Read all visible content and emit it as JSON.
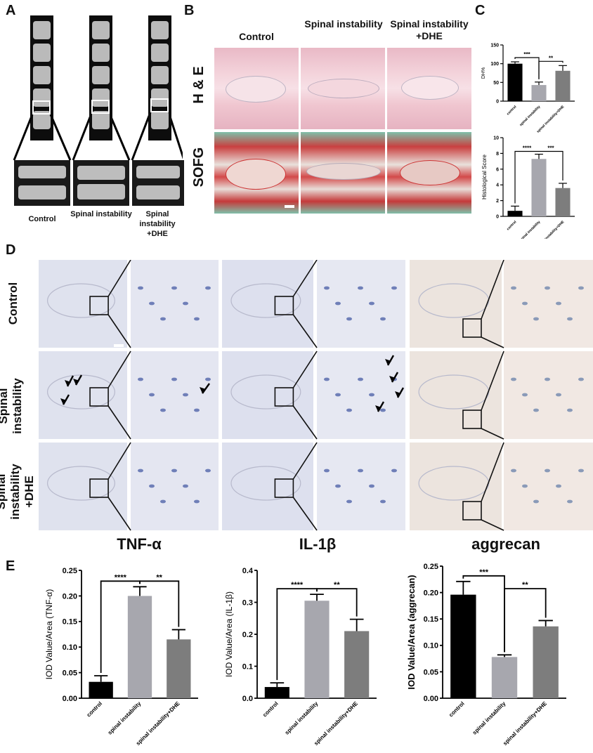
{
  "panels": {
    "A": "A",
    "B": "B",
    "C": "C",
    "D": "D",
    "E": "E"
  },
  "panel_a": {
    "labels": [
      "Control",
      "Spinal instability",
      "Spinal instability +DHE"
    ]
  },
  "panel_b": {
    "col_headers": [
      "Control",
      "Spinal instability",
      "Spinal instability +DHE"
    ],
    "row_labels": [
      "H & E",
      "SOFG"
    ]
  },
  "panel_d": {
    "row_labels": [
      "Control",
      "Spinal instability",
      "Spinal instability +DHE"
    ],
    "stain_labels": [
      "TNF-α",
      "IL-1β",
      "aggrecan"
    ]
  },
  "colors": {
    "control": "#000000",
    "instability": "#a7a7ae",
    "dhe": "#7d7d7d"
  },
  "chart_data": [
    {
      "type": "bar",
      "panel": "C-top",
      "categories": [
        "control",
        "spinal instability",
        "spinal instability+DHE"
      ],
      "values": [
        100,
        43,
        81
      ],
      "errors": [
        5,
        8,
        14
      ],
      "ylabel": "DH%",
      "ylim": [
        0,
        150
      ],
      "yticks": [
        0,
        50,
        100,
        150
      ],
      "annotations": [
        {
          "from": 0,
          "to": 1,
          "text": "***"
        },
        {
          "from": 1,
          "to": 2,
          "text": "**"
        }
      ]
    },
    {
      "type": "bar",
      "panel": "C-bottom",
      "categories": [
        "control",
        "spinal instability",
        "spinal instability+DHE"
      ],
      "values": [
        0.7,
        7.3,
        3.6
      ],
      "errors": [
        0.6,
        0.6,
        0.6
      ],
      "ylabel": "Histological Score",
      "ylim": [
        0,
        10
      ],
      "yticks": [
        0,
        2,
        4,
        6,
        8,
        10
      ],
      "annotations": [
        {
          "from": 0,
          "to": 1,
          "text": "****"
        },
        {
          "from": 1,
          "to": 2,
          "text": "***"
        }
      ]
    },
    {
      "type": "bar",
      "panel": "E-1",
      "categories": [
        "control",
        "spinal instability",
        "spinal instability+DHE"
      ],
      "values": [
        0.032,
        0.2,
        0.115
      ],
      "errors": [
        0.012,
        0.018,
        0.019
      ],
      "ylabel": "IOD Value/Area (TNF-α)",
      "ylim": [
        0,
        0.25
      ],
      "yticks": [
        "0.00",
        "0.05",
        "0.10",
        "0.15",
        "0.20",
        "0.25"
      ],
      "annotations": [
        {
          "from": 0,
          "to": 1,
          "text": "****"
        },
        {
          "from": 1,
          "to": 2,
          "text": "**"
        }
      ]
    },
    {
      "type": "bar",
      "panel": "E-2",
      "categories": [
        "control",
        "spinal instability",
        "spinal instability+DHE"
      ],
      "values": [
        0.035,
        0.305,
        0.21
      ],
      "errors": [
        0.013,
        0.02,
        0.037
      ],
      "ylabel": "IOD Value/Area (IL-1β)",
      "ylim": [
        0,
        0.4
      ],
      "yticks": [
        "0.0",
        "0.1",
        "0.2",
        "0.3",
        "0.4"
      ],
      "annotations": [
        {
          "from": 0,
          "to": 1,
          "text": "****"
        },
        {
          "from": 1,
          "to": 2,
          "text": "**"
        }
      ]
    },
    {
      "type": "bar",
      "panel": "E-3",
      "categories": [
        "control",
        "spinal instability",
        "spinal instability+DHE"
      ],
      "values": [
        0.196,
        0.078,
        0.136
      ],
      "errors": [
        0.025,
        0.004,
        0.011
      ],
      "ylabel": "IOD Value/Area (aggrecan)",
      "ylim": [
        0,
        0.25
      ],
      "yticks": [
        "0.00",
        "0.05",
        "0.10",
        "0.15",
        "0.20",
        "0.25"
      ],
      "annotations": [
        {
          "from": 0,
          "to": 1,
          "text": "***"
        },
        {
          "from": 1,
          "to": 2,
          "text": "**"
        }
      ]
    }
  ]
}
